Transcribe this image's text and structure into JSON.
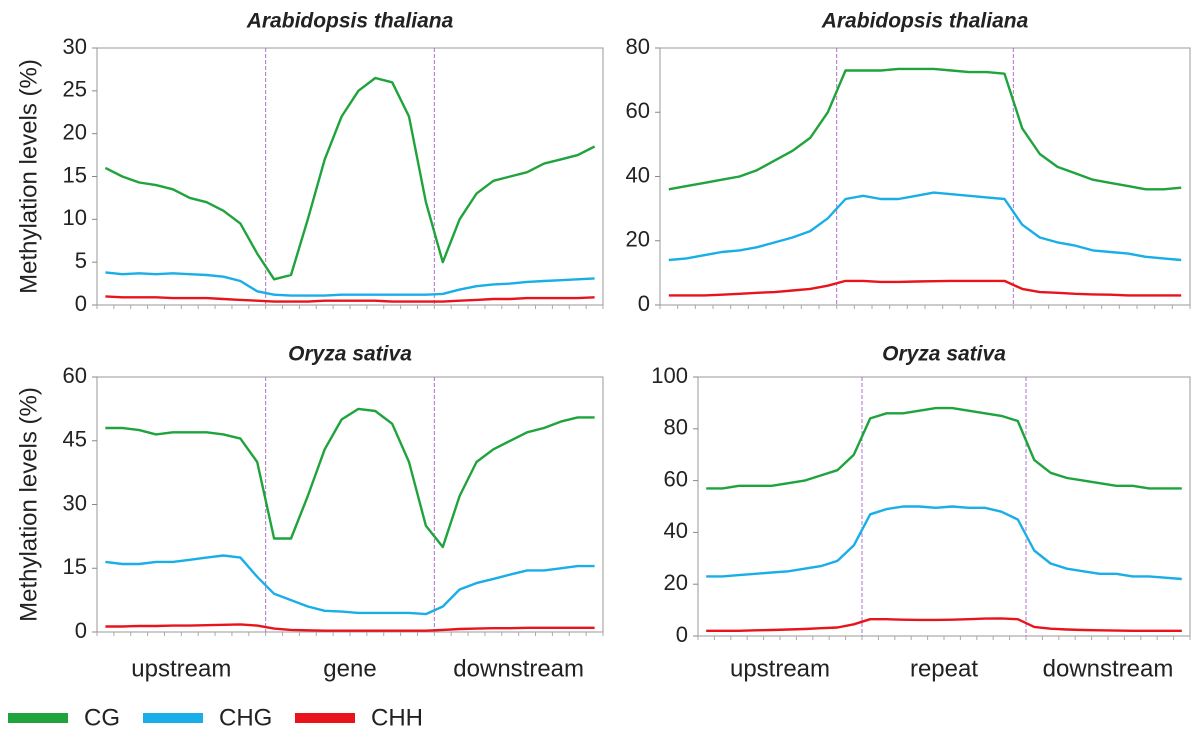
{
  "chart_data": [
    {
      "type": "line",
      "title": "Arabidopsis thaliana",
      "ylabel": "Methylation levels (%)",
      "ylim": [
        0,
        30
      ],
      "yticks": [
        0,
        5,
        10,
        15,
        20,
        25,
        30
      ],
      "series": [
        {
          "name": "CG",
          "color": "#1fa33c",
          "values": [
            16,
            15,
            14.3,
            14,
            13.5,
            12.5,
            12,
            11,
            9.5,
            6,
            3,
            3.5,
            10,
            17,
            22,
            25,
            26.5,
            26,
            22,
            12,
            5,
            10,
            13,
            14.5,
            15,
            15.5,
            16.5,
            17,
            17.5,
            18.5
          ]
        },
        {
          "name": "CHG",
          "color": "#1aaee8",
          "values": [
            3.8,
            3.6,
            3.7,
            3.6,
            3.7,
            3.6,
            3.5,
            3.3,
            2.8,
            1.6,
            1.2,
            1.1,
            1.1,
            1.1,
            1.2,
            1.2,
            1.2,
            1.2,
            1.2,
            1.2,
            1.3,
            1.8,
            2.2,
            2.4,
            2.5,
            2.7,
            2.8,
            2.9,
            3,
            3.1
          ]
        },
        {
          "name": "CHH",
          "color": "#e8141c",
          "values": [
            1,
            0.9,
            0.9,
            0.9,
            0.8,
            0.8,
            0.8,
            0.7,
            0.6,
            0.5,
            0.4,
            0.4,
            0.4,
            0.5,
            0.5,
            0.5,
            0.5,
            0.4,
            0.4,
            0.4,
            0.4,
            0.5,
            0.6,
            0.7,
            0.7,
            0.8,
            0.8,
            0.8,
            0.8,
            0.9
          ]
        }
      ]
    },
    {
      "type": "line",
      "title": "Arabidopsis thaliana",
      "ylim": [
        0,
        80
      ],
      "yticks": [
        0,
        20,
        40,
        60,
        80
      ],
      "series": [
        {
          "name": "CG",
          "color": "#1fa33c",
          "values": [
            36,
            37,
            38,
            39,
            40,
            42,
            45,
            48,
            52,
            60,
            73,
            73,
            73,
            73.5,
            73.5,
            73.5,
            73,
            72.5,
            72.5,
            72,
            55,
            47,
            43,
            41,
            39,
            38,
            37,
            36,
            36,
            36.5
          ]
        },
        {
          "name": "CHG",
          "color": "#1aaee8",
          "values": [
            14,
            14.5,
            15.5,
            16.5,
            17,
            18,
            19.5,
            21,
            23,
            27,
            33,
            34,
            33,
            33,
            34,
            35,
            34.5,
            34,
            33.5,
            33,
            25,
            21,
            19.5,
            18.5,
            17,
            16.5,
            16,
            15,
            14.5,
            14
          ]
        },
        {
          "name": "CHH",
          "color": "#e8141c",
          "values": [
            3,
            3,
            3,
            3.2,
            3.5,
            3.8,
            4,
            4.5,
            5,
            6,
            7.5,
            7.5,
            7.2,
            7.2,
            7.3,
            7.4,
            7.5,
            7.5,
            7.5,
            7.5,
            5,
            4,
            3.8,
            3.5,
            3.3,
            3.2,
            3,
            3,
            3,
            3
          ]
        }
      ]
    },
    {
      "type": "line",
      "title": "Oryza sativa",
      "ylabel": "Methylation levels (%)",
      "ylim": [
        0,
        60
      ],
      "yticks": [
        0,
        15,
        30,
        45,
        60
      ],
      "regions": [
        "upstream",
        "gene",
        "downstream"
      ],
      "series": [
        {
          "name": "CG",
          "color": "#1fa33c",
          "values": [
            48,
            48,
            47.5,
            46.5,
            47,
            47,
            47,
            46.5,
            45.5,
            40,
            22,
            22,
            32,
            43,
            50,
            52.5,
            52,
            49,
            40,
            25,
            20,
            32,
            40,
            43,
            45,
            47,
            48,
            49.5,
            50.5,
            50.5
          ]
        },
        {
          "name": "CHG",
          "color": "#1aaee8",
          "values": [
            16.5,
            16,
            16,
            16.5,
            16.5,
            17,
            17.5,
            18,
            17.5,
            13,
            9,
            7.5,
            6,
            5,
            4.8,
            4.5,
            4.5,
            4.5,
            4.5,
            4.2,
            6,
            10,
            11.5,
            12.5,
            13.5,
            14.5,
            14.5,
            15,
            15.5,
            15.5
          ]
        },
        {
          "name": "CHH",
          "color": "#e8141c",
          "values": [
            1.3,
            1.3,
            1.4,
            1.4,
            1.5,
            1.5,
            1.6,
            1.7,
            1.8,
            1.5,
            0.8,
            0.5,
            0.4,
            0.3,
            0.3,
            0.3,
            0.3,
            0.3,
            0.3,
            0.3,
            0.5,
            0.7,
            0.8,
            0.9,
            0.9,
            1,
            1,
            1,
            1,
            1
          ]
        }
      ]
    },
    {
      "type": "line",
      "title": "Oryza sativa",
      "ylim": [
        0,
        100
      ],
      "yticks": [
        0,
        20,
        40,
        60,
        80,
        100
      ],
      "regions": [
        "upstream",
        "repeat",
        "downstream"
      ],
      "series": [
        {
          "name": "CG",
          "color": "#1fa33c",
          "values": [
            57,
            57,
            58,
            58,
            58,
            59,
            60,
            62,
            64,
            70,
            84,
            86,
            86,
            87,
            88,
            88,
            87,
            86,
            85,
            83,
            68,
            63,
            61,
            60,
            59,
            58,
            58,
            57,
            57,
            57
          ]
        },
        {
          "name": "CHG",
          "color": "#1aaee8",
          "values": [
            23,
            23,
            23.5,
            24,
            24.5,
            25,
            26,
            27,
            29,
            35,
            47,
            49,
            50,
            50,
            49.5,
            50,
            49.5,
            49.5,
            48,
            45,
            33,
            28,
            26,
            25,
            24,
            24,
            23,
            23,
            22.5,
            22
          ]
        },
        {
          "name": "CHH",
          "color": "#e8141c",
          "values": [
            2,
            2,
            2,
            2.2,
            2.3,
            2.5,
            2.7,
            3,
            3.3,
            4.5,
            6.5,
            6.5,
            6.3,
            6.2,
            6.2,
            6.3,
            6.5,
            6.7,
            6.8,
            6.5,
            3.5,
            2.8,
            2.5,
            2.3,
            2.2,
            2.1,
            2,
            2,
            2,
            2
          ]
        }
      ]
    }
  ]
}
